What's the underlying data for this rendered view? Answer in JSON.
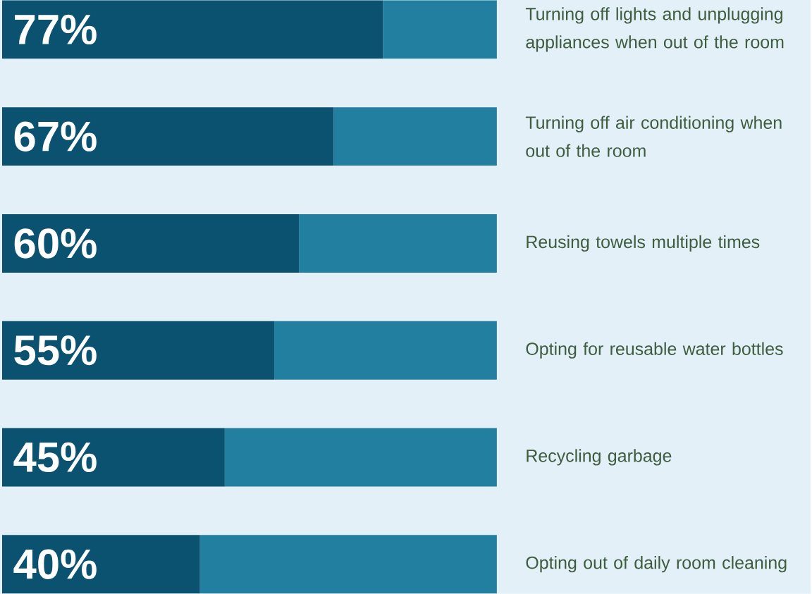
{
  "chart_data": {
    "type": "bar",
    "orientation": "horizontal",
    "stacked": true,
    "categories": [
      "Turning off lights and unplugging appliances when out of the room",
      "Turning off air conditioning when out of the room",
      "Reusing towels multiple times",
      "Opting for reusable water bottles",
      "Recycling garbage",
      "Opting out of daily room cleaning"
    ],
    "series": [
      {
        "color": "#0a5270",
        "values": [
          77,
          67,
          60,
          55,
          45,
          40
        ],
        "value_labels": [
          "77%",
          "67%",
          "60%",
          "55%",
          "45%",
          "40%"
        ]
      },
      {
        "color": "#237fa0",
        "values": [
          23,
          33,
          40,
          45,
          55,
          60
        ]
      }
    ],
    "xlim": [
      0,
      100
    ],
    "tick_labels": "y"
  }
}
